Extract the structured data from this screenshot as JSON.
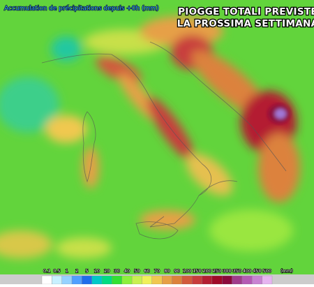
{
  "header": {
    "subtitle": "Accumulation de précipitations depuis +0h (mm)",
    "title_line1": "PIOGGE TOTALI PREVISTE",
    "title_line2": "LA PROSSIMA SETTIMANA"
  },
  "legend": {
    "labels": [
      "0.1",
      "0.5",
      "1",
      "2",
      "5",
      "10",
      "20",
      "30",
      "40",
      "50",
      "60",
      "70",
      "80",
      "90",
      "100",
      "150",
      "200",
      "250",
      "300",
      "350",
      "400",
      "450",
      "500"
    ],
    "colors": [
      "#ffffff",
      "#c8f0ff",
      "#96d2ff",
      "#50a0ff",
      "#1e6eeb",
      "#00c8c8",
      "#00dc82",
      "#32e132",
      "#8cf03c",
      "#c8f050",
      "#f0f05a",
      "#f0c850",
      "#e6a046",
      "#dc823c",
      "#d25a3c",
      "#c83c3c",
      "#b41e32",
      "#a00a28",
      "#8c0a3c",
      "#a03c8c",
      "#b45ab4",
      "#c882d2",
      "#e6b4f0"
    ],
    "unit": "(mm)"
  }
}
